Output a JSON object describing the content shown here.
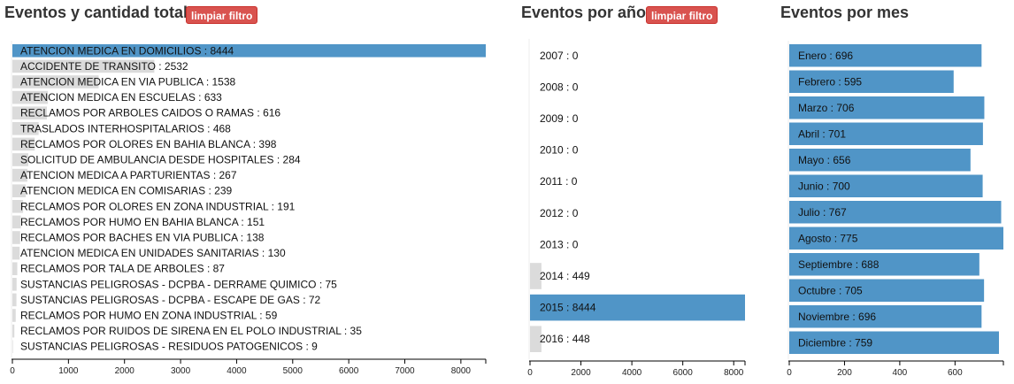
{
  "panels": {
    "total": {
      "title": "Eventos y cantidad total",
      "reset_label": "limpiar filtro",
      "chart_data": {
        "type": "bar",
        "orientation": "horizontal",
        "title": "Eventos y cantidad total",
        "categories": [
          "ATENCION MEDICA EN DOMICILIOS",
          "ACCIDENTE DE TRANSITO",
          "ATENCION MEDICA EN VIA PUBLICA",
          "ATENCION MEDICA EN ESCUELAS",
          "RECLAMOS POR ARBOLES CAIDOS O RAMAS",
          "TRASLADOS INTERHOSPITALARIOS",
          "RECLAMOS POR OLORES EN BAHIA BLANCA",
          "SOLICITUD DE AMBULANCIA DESDE HOSPITALES",
          "ATENCION MEDICA A PARTURIENTAS",
          "ATENCION MEDICA EN COMISARIAS",
          "RECLAMOS POR OLORES EN ZONA INDUSTRIAL",
          "RECLAMOS POR HUMO EN BAHIA BLANCA",
          "RECLAMOS POR BACHES EN VIA PUBLICA",
          "ATENCION MEDICA EN UNIDADES SANITARIAS",
          "RECLAMOS POR TALA DE ARBOLES",
          "SUSTANCIAS PELIGROSAS - DCPBA - DERRAME QUIMICO",
          "SUSTANCIAS PELIGROSAS - DCPBA - ESCAPE DE GAS",
          "RECLAMOS POR HUMO EN ZONA INDUSTRIAL",
          "RECLAMOS POR RUIDOS DE SIRENA EN EL POLO INDUSTRIAL",
          "SUSTANCIAS PELIGROSAS - RESIDUOS PATOGENICOS"
        ],
        "values": [
          8444,
          2532,
          1538,
          633,
          616,
          468,
          398,
          284,
          267,
          239,
          191,
          151,
          138,
          130,
          87,
          75,
          72,
          59,
          35,
          9
        ],
        "selected": [
          0
        ],
        "xlim": [
          0,
          8444
        ],
        "ticks": [
          0,
          1000,
          2000,
          3000,
          4000,
          5000,
          6000,
          7000,
          8000
        ],
        "colors": {
          "selected": "#3182bd",
          "unselected": "#cccccc"
        }
      }
    },
    "year": {
      "title": "Eventos por año",
      "reset_label": "limpiar filtro",
      "chart_data": {
        "type": "bar",
        "orientation": "horizontal",
        "title": "Eventos por año",
        "categories": [
          "2007",
          "2008",
          "2009",
          "2010",
          "2011",
          "2012",
          "2013",
          "2014",
          "2015",
          "2016"
        ],
        "values": [
          0,
          0,
          0,
          0,
          0,
          0,
          0,
          449,
          8444,
          448
        ],
        "selected": [
          8
        ],
        "xlim": [
          0,
          8444
        ],
        "ticks": [
          0,
          2000,
          4000,
          6000,
          8000
        ],
        "colors": {
          "selected": "#3182bd",
          "unselected": "#cccccc"
        }
      }
    },
    "month": {
      "title": "Eventos por mes",
      "chart_data": {
        "type": "bar",
        "orientation": "horizontal",
        "title": "Eventos por mes",
        "categories": [
          "Enero",
          "Febrero",
          "Marzo",
          "Abril",
          "Mayo",
          "Junio",
          "Julio",
          "Agosto",
          "Septiembre",
          "Octubre",
          "Noviembre",
          "Diciembre"
        ],
        "values": [
          696,
          595,
          706,
          701,
          656,
          700,
          767,
          775,
          688,
          705,
          696,
          759
        ],
        "selected": [
          0,
          1,
          2,
          3,
          4,
          5,
          6,
          7,
          8,
          9,
          10,
          11
        ],
        "xlim": [
          0,
          775
        ],
        "ticks": [
          0,
          200,
          400,
          600
        ],
        "colors": {
          "selected": "#3182bd",
          "unselected": "#cccccc"
        }
      }
    }
  }
}
